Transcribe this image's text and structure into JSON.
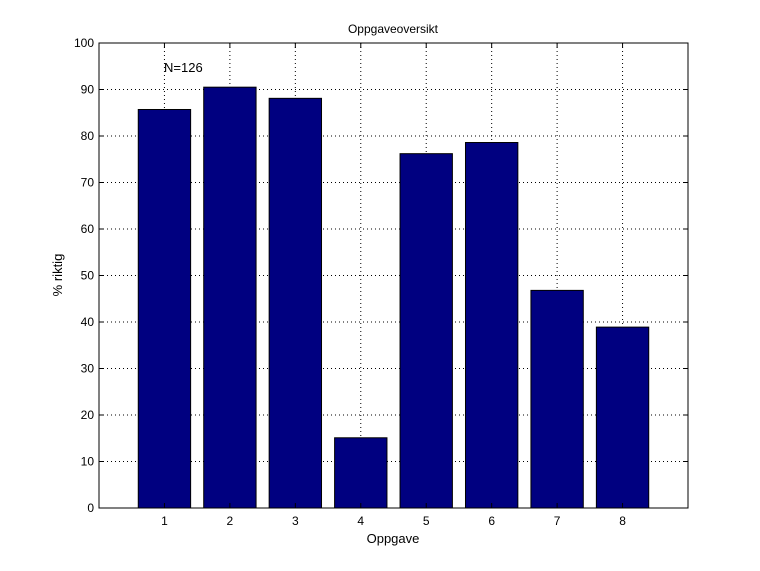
{
  "chart_data": {
    "type": "bar",
    "title": "Oppgaveoversikt",
    "xlabel": "Oppgave",
    "ylabel": "% riktig",
    "annotation": "N=126",
    "categories": [
      "1",
      "2",
      "3",
      "4",
      "5",
      "6",
      "7",
      "8"
    ],
    "values": [
      85.7,
      90.5,
      88.1,
      15.1,
      76.2,
      78.6,
      46.8,
      38.9
    ],
    "ylim": [
      0,
      100
    ],
    "xlim": [
      0,
      9
    ],
    "yticks": [
      "0",
      "10",
      "20",
      "30",
      "40",
      "50",
      "60",
      "70",
      "80",
      "90",
      "100"
    ],
    "grid": true,
    "bar_color": "#000080",
    "bar_edge_color": "#000000"
  }
}
